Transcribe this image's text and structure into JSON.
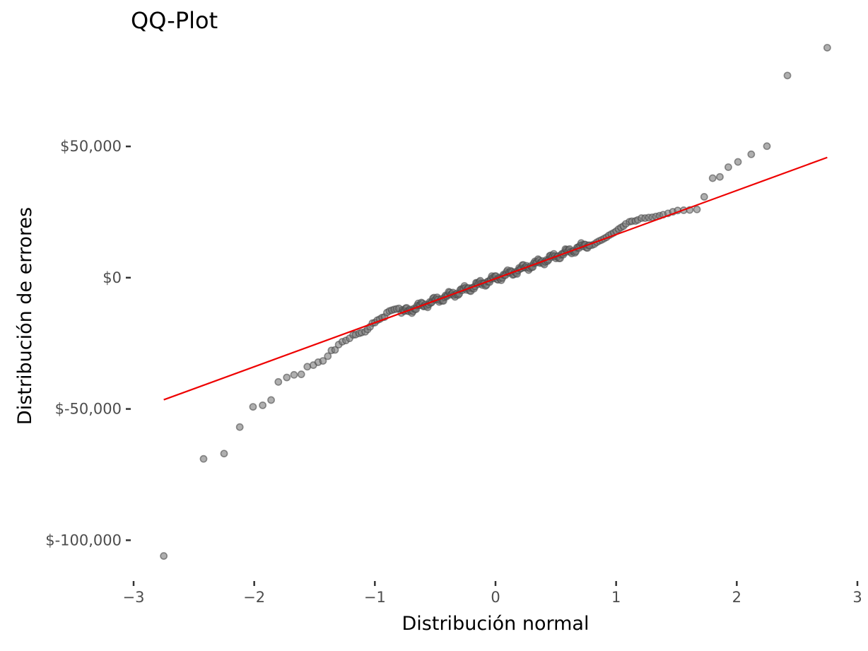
{
  "chart_data": {
    "type": "scatter",
    "title": "QQ-Plot",
    "xlabel": "Distribución normal",
    "ylabel": "Distribución de errores",
    "xlim": [
      -3,
      3
    ],
    "ylim": [
      -115000,
      95000
    ],
    "grid": false,
    "x_ticks": [
      -3,
      -2,
      -1,
      0,
      1,
      2,
      3
    ],
    "x_tick_labels": [
      "−3",
      "−2",
      "−1",
      "0",
      "1",
      "2",
      "3"
    ],
    "y_ticks": [
      50000,
      0,
      -50000,
      -100000
    ],
    "y_tick_labels": [
      "$50,000",
      "$0",
      "$-50,000",
      "$-100,000"
    ],
    "reference_line": {
      "x": [
        -2.75,
        2.75
      ],
      "y": [
        -46500,
        45800
      ],
      "color": "#ee0000"
    },
    "outliers": {
      "x": [
        -2.75,
        -2.42,
        -2.25,
        -2.12,
        -2.01,
        -1.93,
        -1.86,
        -1.8,
        -1.73,
        -1.67,
        -1.61,
        -1.56,
        -1.51,
        -1.47,
        -1.43,
        -1.39,
        -1.36,
        -1.33,
        -1.3,
        -1.27,
        -1.24,
        -1.21,
        -1.18,
        -1.16,
        -1.13,
        -1.11,
        -1.08,
        -1.06,
        -1.04,
        -1.02,
        -1.0,
        -0.98,
        -0.96,
        -0.94,
        -0.92,
        -0.9,
        -0.88,
        -0.86,
        -0.84,
        -0.82,
        -0.8,
        0.8,
        0.82,
        0.84,
        0.86,
        0.88,
        0.9,
        0.92,
        0.94,
        0.96,
        0.98,
        1.0,
        1.02,
        1.04,
        1.06,
        1.08,
        1.11,
        1.13,
        1.16,
        1.18,
        1.21,
        1.24,
        1.27,
        1.3,
        1.33,
        1.36,
        1.39,
        1.43,
        1.47,
        1.51,
        1.56,
        1.61,
        1.67,
        1.73,
        1.8,
        1.86,
        1.93,
        2.01,
        2.12,
        2.25,
        2.42,
        2.75
      ],
      "y": [
        -106000,
        -69000,
        -67000,
        -56900,
        -49200,
        -48600,
        -46600,
        -39700,
        -38000,
        -37000,
        -36800,
        -33900,
        -33300,
        -32200,
        -31700,
        -29900,
        -27700,
        -27500,
        -25500,
        -24400,
        -23900,
        -23100,
        -21800,
        -21700,
        -21200,
        -20900,
        -20600,
        -19700,
        -18700,
        -17300,
        -17100,
        -16200,
        -15800,
        -15200,
        -15000,
        -13300,
        -12700,
        -12400,
        -12100,
        -11900,
        -11700,
        12400,
        12800,
        13500,
        14000,
        14400,
        14900,
        15400,
        16100,
        16600,
        17100,
        17700,
        18500,
        19100,
        19600,
        20500,
        21300,
        21500,
        21600,
        22000,
        22700,
        22700,
        22900,
        23000,
        23300,
        23600,
        24000,
        24500,
        25100,
        25600,
        25700,
        25800,
        26000,
        30800,
        37900,
        38400,
        42100,
        44100,
        47000,
        50100,
        77000,
        87600
      ]
    },
    "central_band": {
      "x_range": [
        -0.78,
        0.78
      ],
      "slope": 16850,
      "intercept": -300,
      "count": 180
    }
  }
}
